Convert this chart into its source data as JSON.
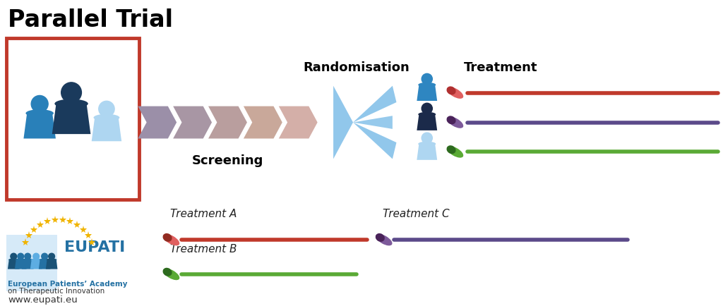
{
  "title": "Parallel Trial",
  "screening_label": "Screening",
  "randomisation_label": "Randomisation",
  "treatment_label": "Treatment",
  "treatment_a_label": "Treatment A",
  "treatment_b_label": "Treatment B",
  "treatment_c_label": "Treatment C",
  "eupati_text1": "European Patients’ Academy",
  "eupati_text2": "on Therapeutic Innovation",
  "eupati_url": "www.eupati.eu",
  "colors": {
    "red_line": "#c0392b",
    "purple_line": "#5b4a8a",
    "green_line": "#5aaa35",
    "box_border": "#c0392b",
    "arrow_colors": [
      "#9b8fa8",
      "#a896a4",
      "#b99e9e",
      "#c9a89a",
      "#d4afa8"
    ],
    "rand_arrow": "#85c1e9",
    "title_color": "#000000",
    "label_color": "#000000",
    "eupati_blue": "#2471a3",
    "eupati_gold": "#f0b400",
    "eupati_text_blue": "#2471a3"
  },
  "bg_color": "#ffffff",
  "person_colors": {
    "p1_body": "#2980b9",
    "p1_head": "#2980b9",
    "p2_body": "#1a3a5c",
    "p2_head": "#1a3a5c",
    "p3_body": "#aed6f1",
    "p3_head": "#aed6f1"
  },
  "treatment_persons": [
    {
      "body": "#2e86c1",
      "head": "#2e86c1"
    },
    {
      "body": "#1b2a4a",
      "head": "#1b2a4a"
    },
    {
      "body": "#aed6f1",
      "head": "#aed6f1"
    }
  ],
  "pill_colors": [
    {
      "c1": "#b03030",
      "c2": "#e06060"
    },
    {
      "c1": "#4a235a",
      "c2": "#7d5a9a"
    },
    {
      "c1": "#2d6a1e",
      "c2": "#5aaa35"
    }
  ],
  "legend_pill_colors": [
    {
      "c1": "#922b21",
      "c2": "#e06060"
    },
    {
      "c1": "#2d6a1e",
      "c2": "#5aaa35"
    },
    {
      "c1": "#4a235a",
      "c2": "#7d5a9a"
    }
  ]
}
